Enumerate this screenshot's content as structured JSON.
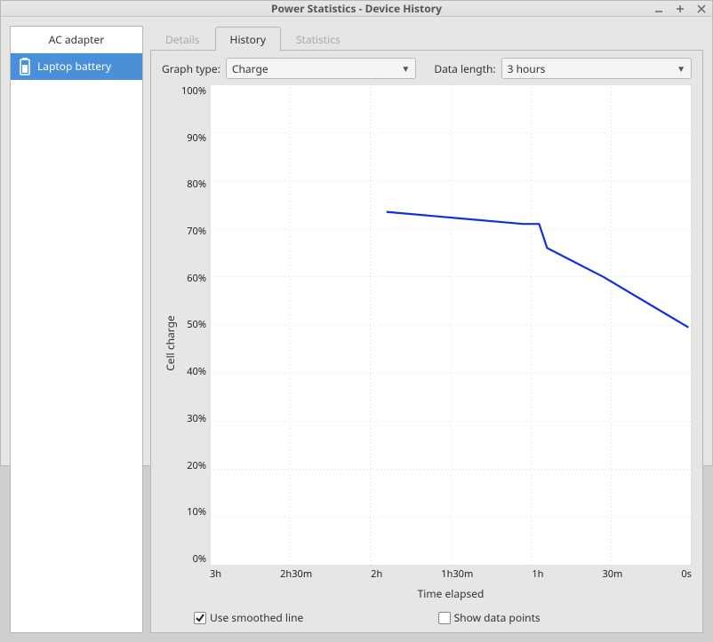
{
  "window": {
    "title": "Power Statistics - Device History"
  },
  "sidebar": {
    "items": [
      {
        "label": "AC adapter",
        "selected": false
      },
      {
        "label": "Laptop battery",
        "selected": true
      }
    ]
  },
  "tabs": {
    "details": "Details",
    "history": "History",
    "statistics": "Statistics",
    "active": "History"
  },
  "controls": {
    "graph_type_label": "Graph type:",
    "graph_type_value": "Charge",
    "data_length_label": "Data length:",
    "data_length_value": "3 hours"
  },
  "chart": {
    "type": "line",
    "ylabel": "Cell charge",
    "xlabel": "Time elapsed",
    "y_ticks": [
      "100%",
      "90%",
      "80%",
      "70%",
      "60%",
      "50%",
      "40%",
      "30%",
      "20%",
      "10%",
      "0%"
    ],
    "y_range": [
      0,
      100
    ],
    "x_ticks": [
      "3h",
      "2h30m",
      "2h",
      "1h30m",
      "1h",
      "30m",
      "0s"
    ],
    "x_range_hours": [
      3,
      0
    ],
    "grid_color": "#9a9a9a",
    "grid_dash": "1 3",
    "axis_color": "#9a9a9a",
    "background_color": "#ffffff",
    "series": {
      "color": "#1030e0",
      "stroke_width": 2.2,
      "points": [
        {
          "t": 1.9,
          "v": 73.5
        },
        {
          "t": 1.05,
          "v": 71.0
        },
        {
          "t": 0.95,
          "v": 71.0
        },
        {
          "t": 0.9,
          "v": 66.0
        },
        {
          "t": 0.55,
          "v": 60.0
        },
        {
          "t": 0.02,
          "v": 49.5
        }
      ]
    }
  },
  "options": {
    "smoothed_label": "Use smoothed line",
    "smoothed_checked": true,
    "show_points_label": "Show data points",
    "show_points_checked": false
  }
}
